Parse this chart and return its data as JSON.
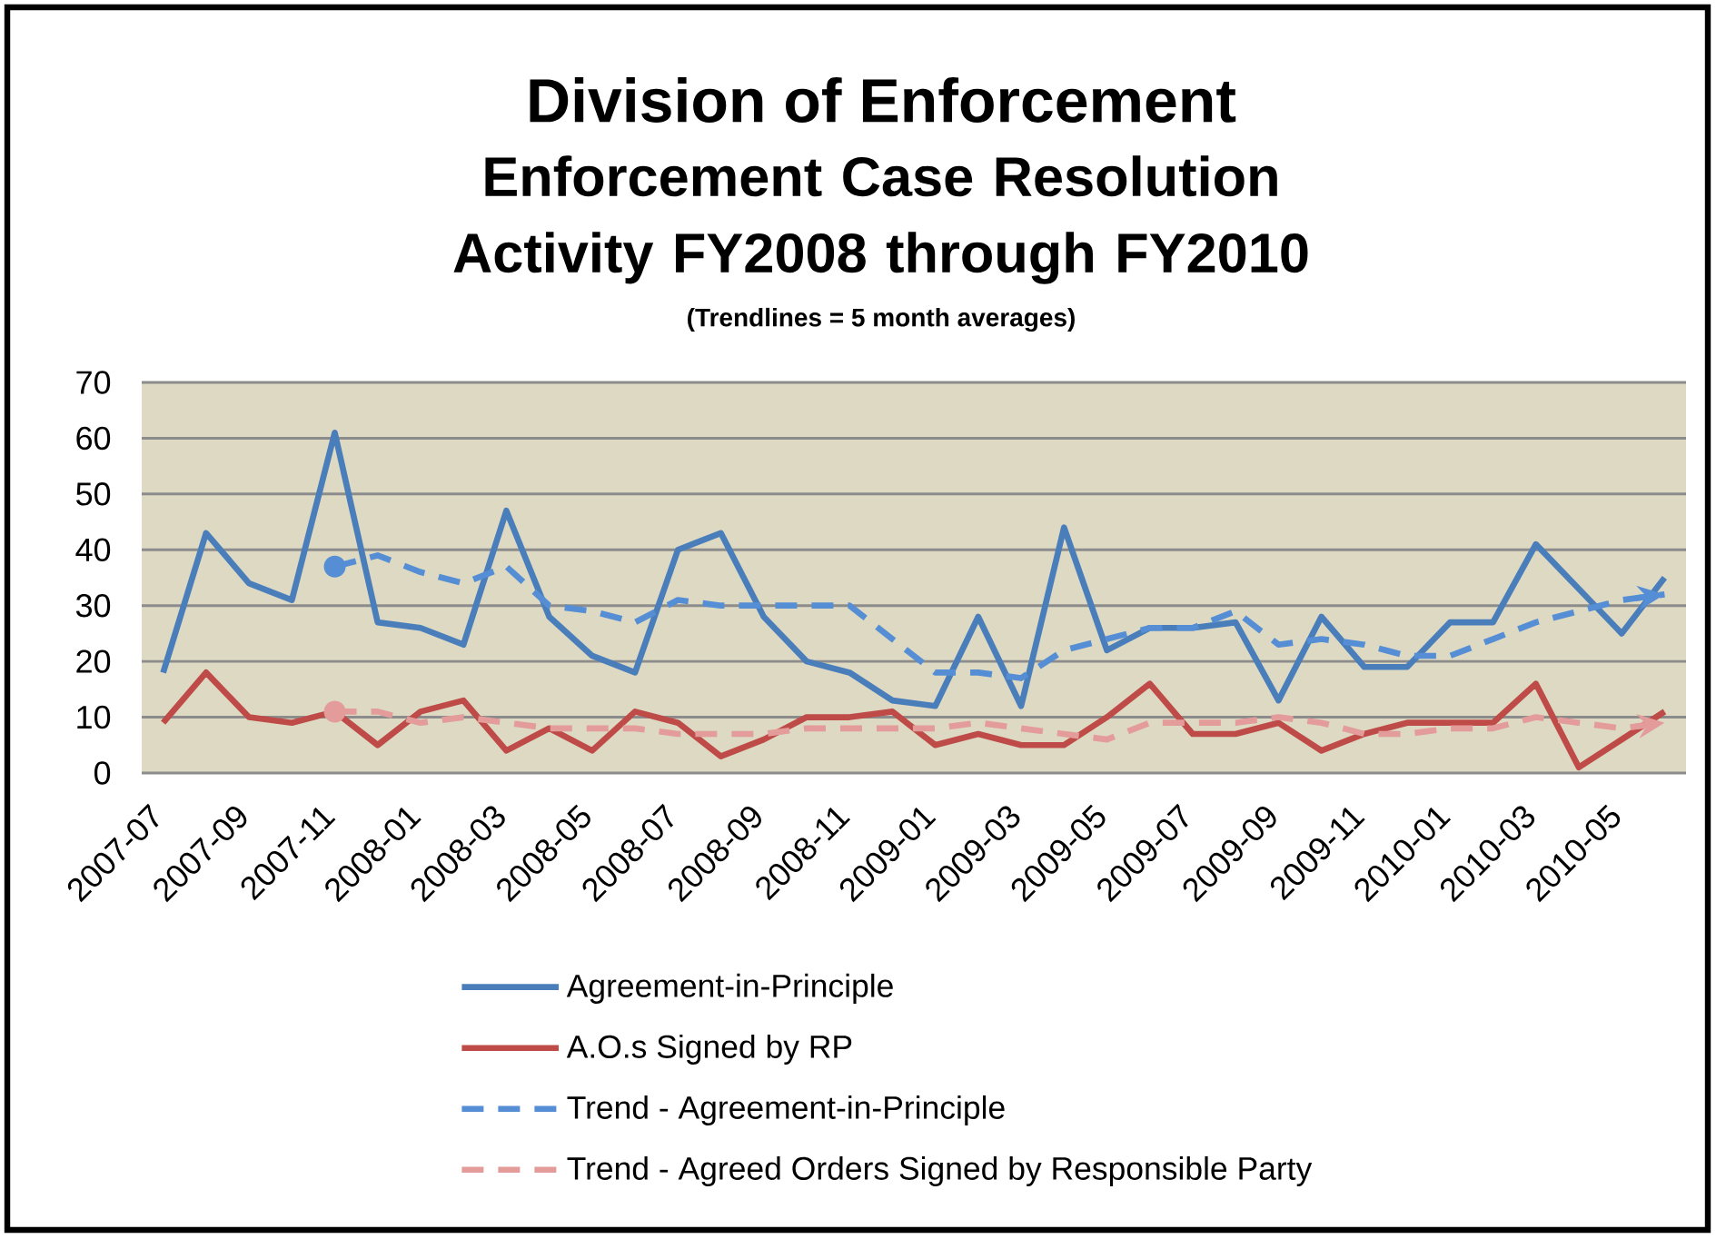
{
  "chart_data": {
    "type": "line",
    "title": "Division of Enforcement",
    "subtitle": "Enforcement Case Resolution Activity FY2008 through FY2010",
    "annotations": [
      "(Trendlines = 5 month averages)"
    ],
    "categories": [
      "2007-07",
      null,
      "2007-09",
      null,
      "2007-11",
      null,
      "2008-01",
      null,
      "2008-03",
      null,
      "2008-05",
      null,
      "2008-07",
      null,
      "2008-09",
      null,
      "2008-11",
      null,
      "2009-01",
      null,
      "2009-03",
      null,
      "2009-05",
      null,
      "2009-07",
      null,
      "2009-09",
      null,
      "2009-11",
      null,
      "2010-01",
      null,
      "2010-03",
      null,
      "2010-05",
      null
    ],
    "series": [
      {
        "name": "Agreement-in-Principle",
        "color": "#4a7ebb",
        "line_style": "solid",
        "values": [
          18,
          43,
          34,
          31,
          61,
          27,
          26,
          23,
          47,
          28,
          21,
          18,
          40,
          43,
          28,
          20,
          18,
          13,
          12,
          28,
          12,
          44,
          22,
          26,
          26,
          27,
          13,
          28,
          19,
          19,
          27,
          27,
          41,
          33,
          25,
          35
        ]
      },
      {
        "name": "A.O.s Signed by RP",
        "color": "#be4b48",
        "line_style": "solid",
        "values": [
          9,
          18,
          10,
          9,
          11,
          5,
          11,
          13,
          4,
          8,
          4,
          11,
          9,
          3,
          6,
          10,
          10,
          11,
          5,
          7,
          5,
          5,
          10,
          16,
          7,
          7,
          9,
          4,
          7,
          9,
          9,
          9,
          16,
          1,
          6,
          11
        ]
      },
      {
        "name": "Trend - Agreement-in-Principle",
        "color": "#558ed5",
        "line_style": "dashed",
        "values": [
          null,
          null,
          null,
          null,
          37,
          39,
          36,
          34,
          37,
          30,
          29,
          27,
          31,
          30,
          30,
          30,
          30,
          24,
          18,
          18,
          17,
          22,
          24,
          26,
          26,
          29,
          23,
          24,
          23,
          21,
          21,
          24,
          27,
          29,
          31,
          32
        ]
      },
      {
        "name": "Trend - Agreed Orders Signed by Responsible Party",
        "color": "#e39c9a",
        "line_style": "dashed",
        "values": [
          null,
          null,
          null,
          null,
          11,
          11,
          9,
          10,
          9,
          8,
          8,
          8,
          7,
          7,
          7,
          8,
          8,
          8,
          8,
          9,
          8,
          7,
          6,
          9,
          9,
          9,
          10,
          9,
          7,
          7,
          8,
          8,
          10,
          9,
          8,
          9
        ]
      }
    ],
    "ylim": [
      0,
      70
    ],
    "yticks": [
      0,
      10,
      20,
      30,
      40,
      50,
      60,
      70
    ],
    "grid": "y",
    "legend": "bottom"
  }
}
